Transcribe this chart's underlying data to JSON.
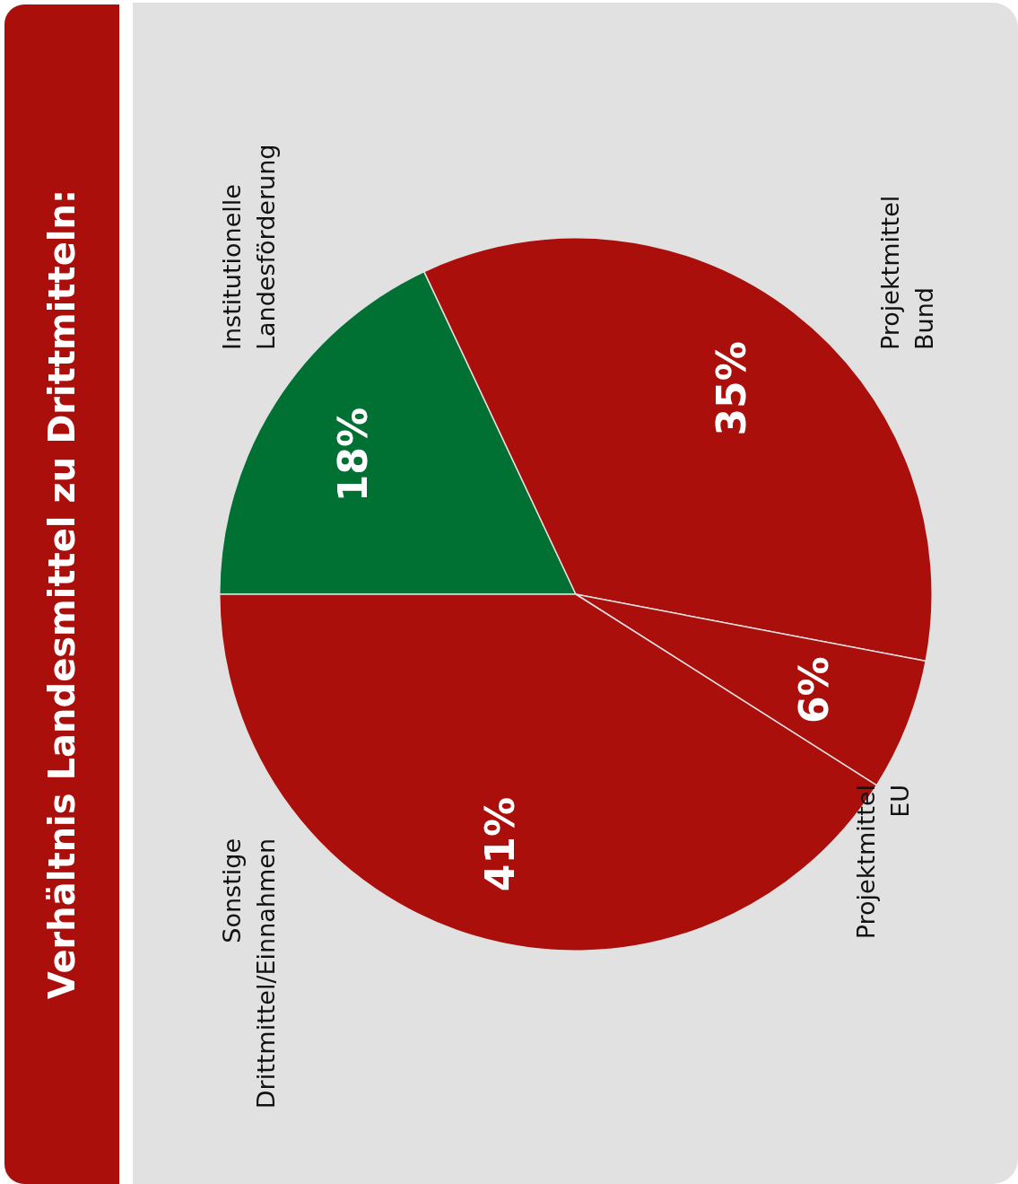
{
  "chart_data": {
    "type": "pie",
    "title": "Verhältnis Landesmittel zu Drittmitteln:",
    "categories": [
      "Institutionelle Landesförderung",
      "Projektmittel Bund",
      "Projektmittel EU",
      "Sonstige Drittmittel/Einnahmen"
    ],
    "values": [
      18,
      35,
      6,
      41
    ],
    "colors": [
      "#007133",
      "#ab0f0b",
      "#ab0f0b",
      "#ab0f0b"
    ],
    "value_labels": [
      "18%",
      "35%",
      "6%",
      "41%"
    ]
  }
}
